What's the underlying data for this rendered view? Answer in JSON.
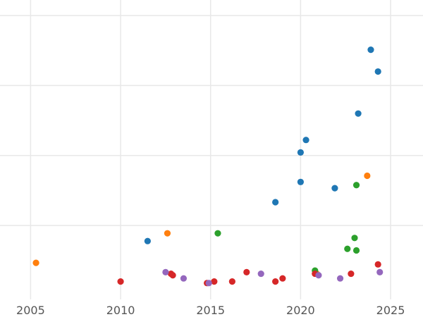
{
  "chart_data": {
    "type": "scatter",
    "title": "",
    "xlabel": "",
    "ylabel": "",
    "xlim": [
      2003.3,
      2026.8
    ],
    "ylim": [
      -0.75,
      18.5
    ],
    "grid": true,
    "legend": "none",
    "x_ticks": [
      2005,
      2010,
      2015,
      2020,
      2025
    ],
    "x_tick_labels": [
      "2005",
      "2010",
      "2015",
      "2020",
      "2025"
    ],
    "y_ticks": [
      4,
      8.5,
      13,
      17.5
    ],
    "series": [
      {
        "color": "#1f77b4",
        "points": [
          {
            "x": 2011.5,
            "y": 3.0
          },
          {
            "x": 2018.6,
            "y": 5.5
          },
          {
            "x": 2020.0,
            "y": 6.8
          },
          {
            "x": 2020.0,
            "y": 8.7
          },
          {
            "x": 2020.3,
            "y": 9.5
          },
          {
            "x": 2021.9,
            "y": 6.4
          },
          {
            "x": 2023.2,
            "y": 11.2
          },
          {
            "x": 2023.9,
            "y": 15.3
          },
          {
            "x": 2024.3,
            "y": 13.9
          }
        ]
      },
      {
        "color": "#ff7f0e",
        "points": [
          {
            "x": 2005.3,
            "y": 1.6
          },
          {
            "x": 2012.6,
            "y": 3.5
          },
          {
            "x": 2020.9,
            "y": 0.9
          },
          {
            "x": 2023.7,
            "y": 7.2
          }
        ]
      },
      {
        "color": "#2ca02c",
        "points": [
          {
            "x": 2015.4,
            "y": 3.5
          },
          {
            "x": 2020.8,
            "y": 1.1
          },
          {
            "x": 2022.6,
            "y": 2.5
          },
          {
            "x": 2023.0,
            "y": 3.2
          },
          {
            "x": 2023.1,
            "y": 2.4
          },
          {
            "x": 2023.1,
            "y": 6.6
          }
        ]
      },
      {
        "color": "#d62728",
        "points": [
          {
            "x": 2010.0,
            "y": 0.4
          },
          {
            "x": 2012.8,
            "y": 0.9
          },
          {
            "x": 2012.9,
            "y": 0.8
          },
          {
            "x": 2014.8,
            "y": 0.3
          },
          {
            "x": 2015.2,
            "y": 0.4
          },
          {
            "x": 2016.2,
            "y": 0.4
          },
          {
            "x": 2017.0,
            "y": 1.0
          },
          {
            "x": 2018.6,
            "y": 0.4
          },
          {
            "x": 2019.0,
            "y": 0.6
          },
          {
            "x": 2020.8,
            "y": 0.9
          },
          {
            "x": 2022.8,
            "y": 0.9
          },
          {
            "x": 2024.3,
            "y": 1.5
          }
        ]
      },
      {
        "color": "#9467bd",
        "points": [
          {
            "x": 2012.5,
            "y": 1.0
          },
          {
            "x": 2013.5,
            "y": 0.6
          },
          {
            "x": 2014.9,
            "y": 0.3
          },
          {
            "x": 2017.8,
            "y": 0.9
          },
          {
            "x": 2021.0,
            "y": 0.8
          },
          {
            "x": 2022.2,
            "y": 0.6
          },
          {
            "x": 2024.4,
            "y": 1.0
          }
        ]
      }
    ]
  }
}
